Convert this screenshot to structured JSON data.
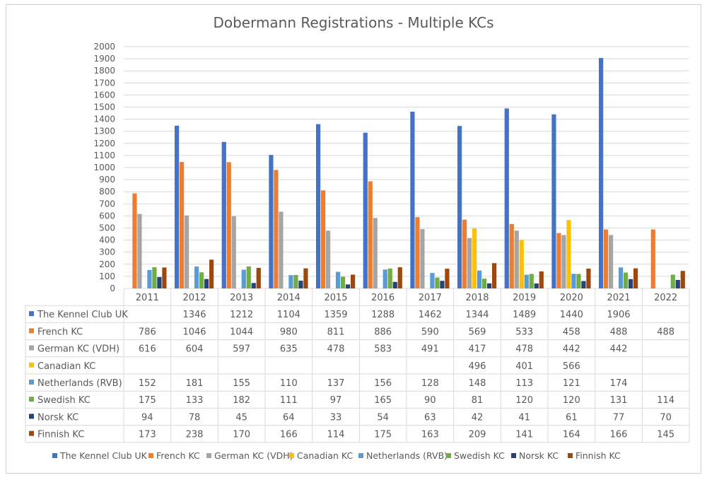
{
  "chart_data": {
    "type": "bar",
    "title": "Dobermann Registrations - Multiple KCs",
    "categories": [
      "2011",
      "2012",
      "2013",
      "2014",
      "2015",
      "2016",
      "2017",
      "2018",
      "2019",
      "2020",
      "2021",
      "2022"
    ],
    "ylim": [
      0,
      2000
    ],
    "ytick_step": 100,
    "grid": true,
    "legend_position": "bottom",
    "data_table": true,
    "series": [
      {
        "name": "The Kennel Club UK",
        "color": "#4472C4",
        "values": [
          null,
          1346,
          1212,
          1104,
          1359,
          1288,
          1462,
          1344,
          1489,
          1440,
          1906,
          null
        ]
      },
      {
        "name": "French KC",
        "color": "#ED7D31",
        "values": [
          786,
          1046,
          1044,
          980,
          811,
          886,
          590,
          569,
          533,
          458,
          488,
          488
        ]
      },
      {
        "name": "German KC (VDH)",
        "color": "#A5A5A5",
        "values": [
          616,
          604,
          597,
          635,
          478,
          583,
          491,
          417,
          478,
          442,
          442,
          null
        ]
      },
      {
        "name": "Canadian KC",
        "color": "#FFC000",
        "values": [
          null,
          null,
          null,
          null,
          null,
          null,
          null,
          496,
          401,
          566,
          null,
          null
        ]
      },
      {
        "name": "Netherlands (RVB)",
        "color": "#5B9BD5",
        "values": [
          152,
          181,
          155,
          110,
          137,
          156,
          128,
          148,
          113,
          121,
          174,
          null
        ]
      },
      {
        "name": "Swedish KC",
        "color": "#70AD47",
        "values": [
          175,
          133,
          182,
          111,
          97,
          165,
          90,
          81,
          120,
          120,
          131,
          114
        ]
      },
      {
        "name": "Norsk KC",
        "color": "#264478",
        "values": [
          94,
          78,
          45,
          64,
          33,
          54,
          63,
          42,
          41,
          61,
          77,
          70
        ]
      },
      {
        "name": "Finnish KC",
        "color": "#9E480E",
        "values": [
          173,
          238,
          170,
          166,
          114,
          175,
          163,
          209,
          141,
          164,
          166,
          145
        ]
      }
    ]
  }
}
